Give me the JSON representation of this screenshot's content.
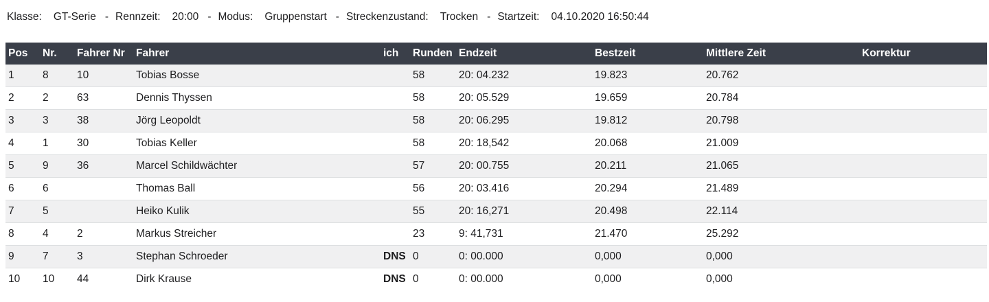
{
  "colors": {
    "header_bg": "#3a3f49",
    "row_stripe": "#f0f0f1",
    "row_border": "#dddfe1",
    "header_text": "#ffffff",
    "body_text": "#1d1d1f"
  },
  "meta": {
    "separator": "-",
    "items": [
      {
        "label": "Klasse:",
        "value": "GT-Serie"
      },
      {
        "label": "Rennzeit:",
        "value": "20:00"
      },
      {
        "label": "Modus:",
        "value": "Gruppenstart"
      },
      {
        "label": "Streckenzustand:",
        "value": "Trocken"
      },
      {
        "label": "Startzeit:",
        "value": "04.10.2020 16:50:44"
      }
    ]
  },
  "table": {
    "columns": [
      {
        "key": "pos",
        "label": "Pos"
      },
      {
        "key": "nr",
        "label": "Nr."
      },
      {
        "key": "fahrer_nr",
        "label": "Fahrer Nr"
      },
      {
        "key": "fahrer",
        "label": "Fahrer"
      },
      {
        "key": "ich",
        "label": "ich"
      },
      {
        "key": "runden",
        "label": "Runden"
      },
      {
        "key": "endzeit",
        "label": "Endzeit"
      },
      {
        "key": "bestzeit",
        "label": "Bestzeit"
      },
      {
        "key": "mittlere_zeit",
        "label": "Mittlere Zeit"
      },
      {
        "key": "korrektur",
        "label": "Korrektur"
      }
    ],
    "rows": [
      {
        "pos": "1",
        "nr": "8",
        "fahrer_nr": "10",
        "fahrer": "Tobias Bosse",
        "ich": "",
        "runden": "58",
        "endzeit": "20: 04.232",
        "bestzeit": "19.823",
        "mittlere_zeit": "20.762",
        "korrektur": ""
      },
      {
        "pos": "2",
        "nr": "2",
        "fahrer_nr": "63",
        "fahrer": "Dennis Thyssen",
        "ich": "",
        "runden": "58",
        "endzeit": "20: 05.529",
        "bestzeit": "19.659",
        "mittlere_zeit": "20.784",
        "korrektur": ""
      },
      {
        "pos": "3",
        "nr": "3",
        "fahrer_nr": "38",
        "fahrer": "Jörg Leopoldt",
        "ich": "",
        "runden": "58",
        "endzeit": "20: 06.295",
        "bestzeit": "19.812",
        "mittlere_zeit": "20.798",
        "korrektur": ""
      },
      {
        "pos": "4",
        "nr": "1",
        "fahrer_nr": "30",
        "fahrer": "Tobias Keller",
        "ich": "",
        "runden": "58",
        "endzeit": "20: 18,542",
        "bestzeit": "20.068",
        "mittlere_zeit": "21.009",
        "korrektur": ""
      },
      {
        "pos": "5",
        "nr": "9",
        "fahrer_nr": "36",
        "fahrer": "Marcel Schildwächter",
        "ich": "",
        "runden": "57",
        "endzeit": "20: 00.755",
        "bestzeit": "20.211",
        "mittlere_zeit": "21.065",
        "korrektur": ""
      },
      {
        "pos": "6",
        "nr": "6",
        "fahrer_nr": "",
        "fahrer": "Thomas Ball",
        "ich": "",
        "runden": "56",
        "endzeit": "20: 03.416",
        "bestzeit": "20.294",
        "mittlere_zeit": "21.489",
        "korrektur": ""
      },
      {
        "pos": "7",
        "nr": "5",
        "fahrer_nr": "",
        "fahrer": "Heiko Kulik",
        "ich": "",
        "runden": "55",
        "endzeit": "20: 16,271",
        "bestzeit": "20.498",
        "mittlere_zeit": "22.114",
        "korrektur": ""
      },
      {
        "pos": "8",
        "nr": "4",
        "fahrer_nr": "2",
        "fahrer": "Markus Streicher",
        "ich": "",
        "runden": "23",
        "endzeit": "9: 41,731",
        "bestzeit": "21.470",
        "mittlere_zeit": "25.292",
        "korrektur": ""
      },
      {
        "pos": "9",
        "nr": "7",
        "fahrer_nr": "3",
        "fahrer": "Stephan Schroeder",
        "ich": "DNS",
        "runden": "0",
        "endzeit": "0: 00.000",
        "bestzeit": "0,000",
        "mittlere_zeit": "0,000",
        "korrektur": ""
      },
      {
        "pos": "10",
        "nr": "10",
        "fahrer_nr": "44",
        "fahrer": "Dirk Krause",
        "ich": "DNS",
        "runden": "0",
        "endzeit": "0: 00.000",
        "bestzeit": "0,000",
        "mittlere_zeit": "0,000",
        "korrektur": ""
      }
    ]
  }
}
